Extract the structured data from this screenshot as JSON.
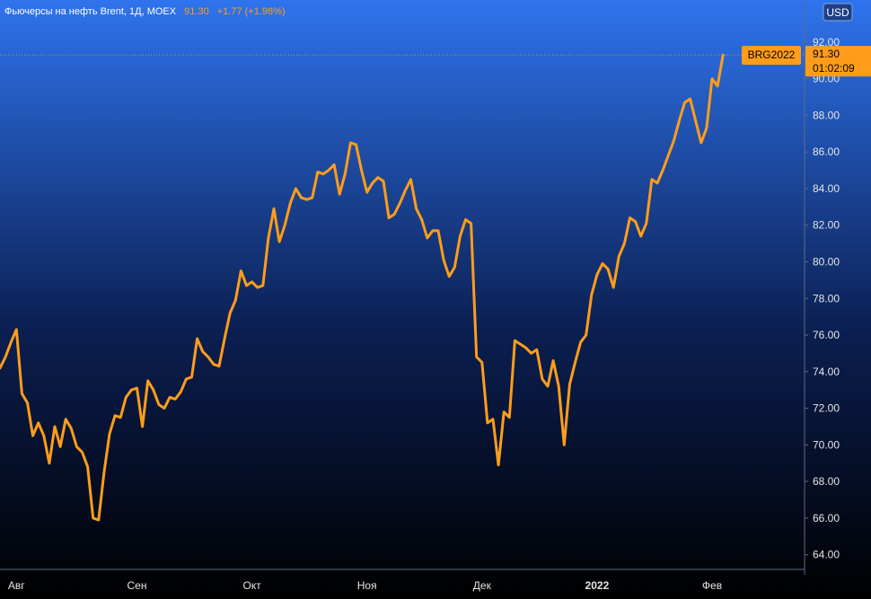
{
  "header": {
    "title": "Фьючерсы на нефть Brent, 1Д, MOEX",
    "last_price": "91.30",
    "change": "+1.77 (+1.98%)"
  },
  "currency_badge": "USD",
  "price_tag": {
    "symbol": "BRG2022",
    "price": "91.30",
    "countdown": "01:02:09"
  },
  "colors": {
    "series": "#ff9d1a",
    "bg_top": "#2f74ee",
    "bg_bottom": "#000000",
    "tag_bg": "#ff9d1a"
  },
  "chart_data": {
    "type": "line",
    "title": "Фьючерсы на нефть Brent, 1Д, MOEX",
    "xlabel": "",
    "ylabel": "",
    "ylim": [
      63.2,
      94.3
    ],
    "y_ticks": [
      64,
      66,
      68,
      70,
      72,
      74,
      76,
      78,
      80,
      82,
      84,
      86,
      88,
      90,
      92
    ],
    "y_tick_labels": [
      "64.00",
      "66.00",
      "68.00",
      "70.00",
      "72.00",
      "74.00",
      "76.00",
      "78.00",
      "80.00",
      "82.00",
      "84.00",
      "86.00",
      "88.00",
      "90.00",
      "92.00"
    ],
    "x_tick_labels": [
      "Авг",
      "Сен",
      "Окт",
      "Ноя",
      "Дек",
      "2022",
      "Фев"
    ],
    "x_tick_index": [
      3,
      25,
      46,
      67,
      88,
      109,
      130
    ],
    "grid": false,
    "series": [
      {
        "name": "BRG2022",
        "values": [
          74.2,
          74.8,
          75.6,
          76.3,
          72.8,
          72.3,
          70.5,
          71.2,
          70.5,
          69.0,
          71.0,
          69.9,
          71.4,
          70.9,
          69.9,
          69.6,
          68.8,
          66.0,
          65.9,
          68.5,
          70.6,
          71.6,
          71.5,
          72.6,
          73.0,
          73.1,
          71.0,
          73.5,
          73.0,
          72.2,
          72.0,
          72.6,
          72.5,
          72.9,
          73.6,
          73.7,
          75.8,
          75.1,
          74.8,
          74.4,
          74.3,
          75.8,
          77.2,
          77.9,
          79.5,
          78.7,
          78.9,
          78.6,
          78.7,
          81.3,
          82.9,
          81.1,
          82.0,
          83.2,
          84.0,
          83.5,
          83.4,
          83.5,
          84.9,
          84.8,
          85.0,
          85.3,
          83.7,
          84.8,
          86.5,
          86.4,
          85.0,
          83.8,
          84.3,
          84.6,
          84.4,
          82.4,
          82.6,
          83.2,
          83.9,
          84.5,
          82.9,
          82.3,
          81.3,
          81.7,
          81.7,
          80.1,
          79.2,
          79.7,
          81.4,
          82.3,
          82.1,
          74.8,
          74.5,
          71.2,
          71.4,
          68.9,
          71.8,
          71.5,
          75.7,
          75.5,
          75.3,
          75.0,
          75.2,
          73.6,
          73.2,
          74.6,
          73.2,
          70.0,
          73.3,
          74.5,
          75.6,
          76.0,
          78.2,
          79.3,
          79.9,
          79.6,
          78.6,
          80.3,
          81.0,
          82.4,
          82.2,
          81.4,
          82.1,
          84.5,
          84.3,
          85.0,
          85.8,
          86.6,
          87.7,
          88.7,
          88.9,
          87.7,
          86.5,
          87.3,
          90.0,
          89.6,
          91.3
        ]
      }
    ]
  }
}
